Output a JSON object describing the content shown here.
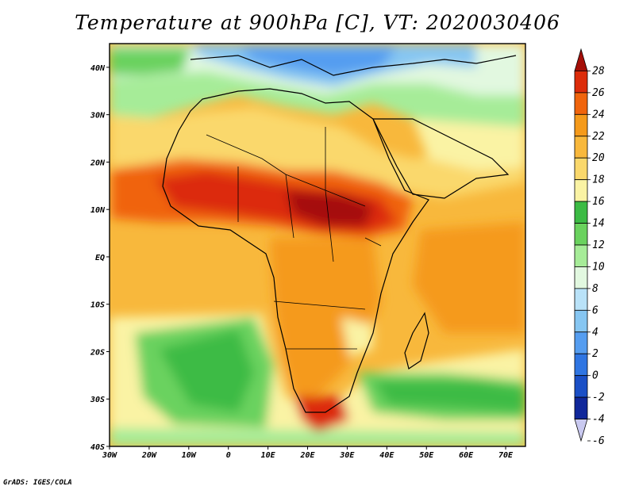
{
  "title": "Temperature at 900hPa [C], VT: 2020030406",
  "credit": "GrADS: IGES/COLA",
  "map": {
    "projection": "lat-lon",
    "lon_range": [
      -30,
      75
    ],
    "lat_range": [
      -40,
      45
    ],
    "lon_ticks": [
      "30W",
      "20W",
      "10W",
      "0",
      "10E",
      "20E",
      "30E",
      "40E",
      "50E",
      "60E",
      "70E"
    ],
    "lat_ticks": [
      "40S",
      "30S",
      "20S",
      "10S",
      "EQ",
      "10N",
      "20N",
      "30N",
      "40N"
    ]
  },
  "colorbar": {
    "levels": [
      "28",
      "26",
      "24",
      "22",
      "20",
      "18",
      "16",
      "14",
      "12",
      "10",
      "8",
      "6",
      "4",
      "2",
      "0",
      "-2",
      "-4",
      "-6"
    ],
    "colors": [
      "#a50f08",
      "#dc2c0a",
      "#f0640c",
      "#f59a1a",
      "#f8b83c",
      "#fad86c",
      "#faf3a4",
      "#3cbb44",
      "#6ad25e",
      "#a6ec98",
      "#e2f8e0",
      "#b9e2f8",
      "#86c6f2",
      "#559df0",
      "#2f75e2",
      "#1a4fc6",
      "#10279a",
      "#c9c9f0"
    ]
  }
}
